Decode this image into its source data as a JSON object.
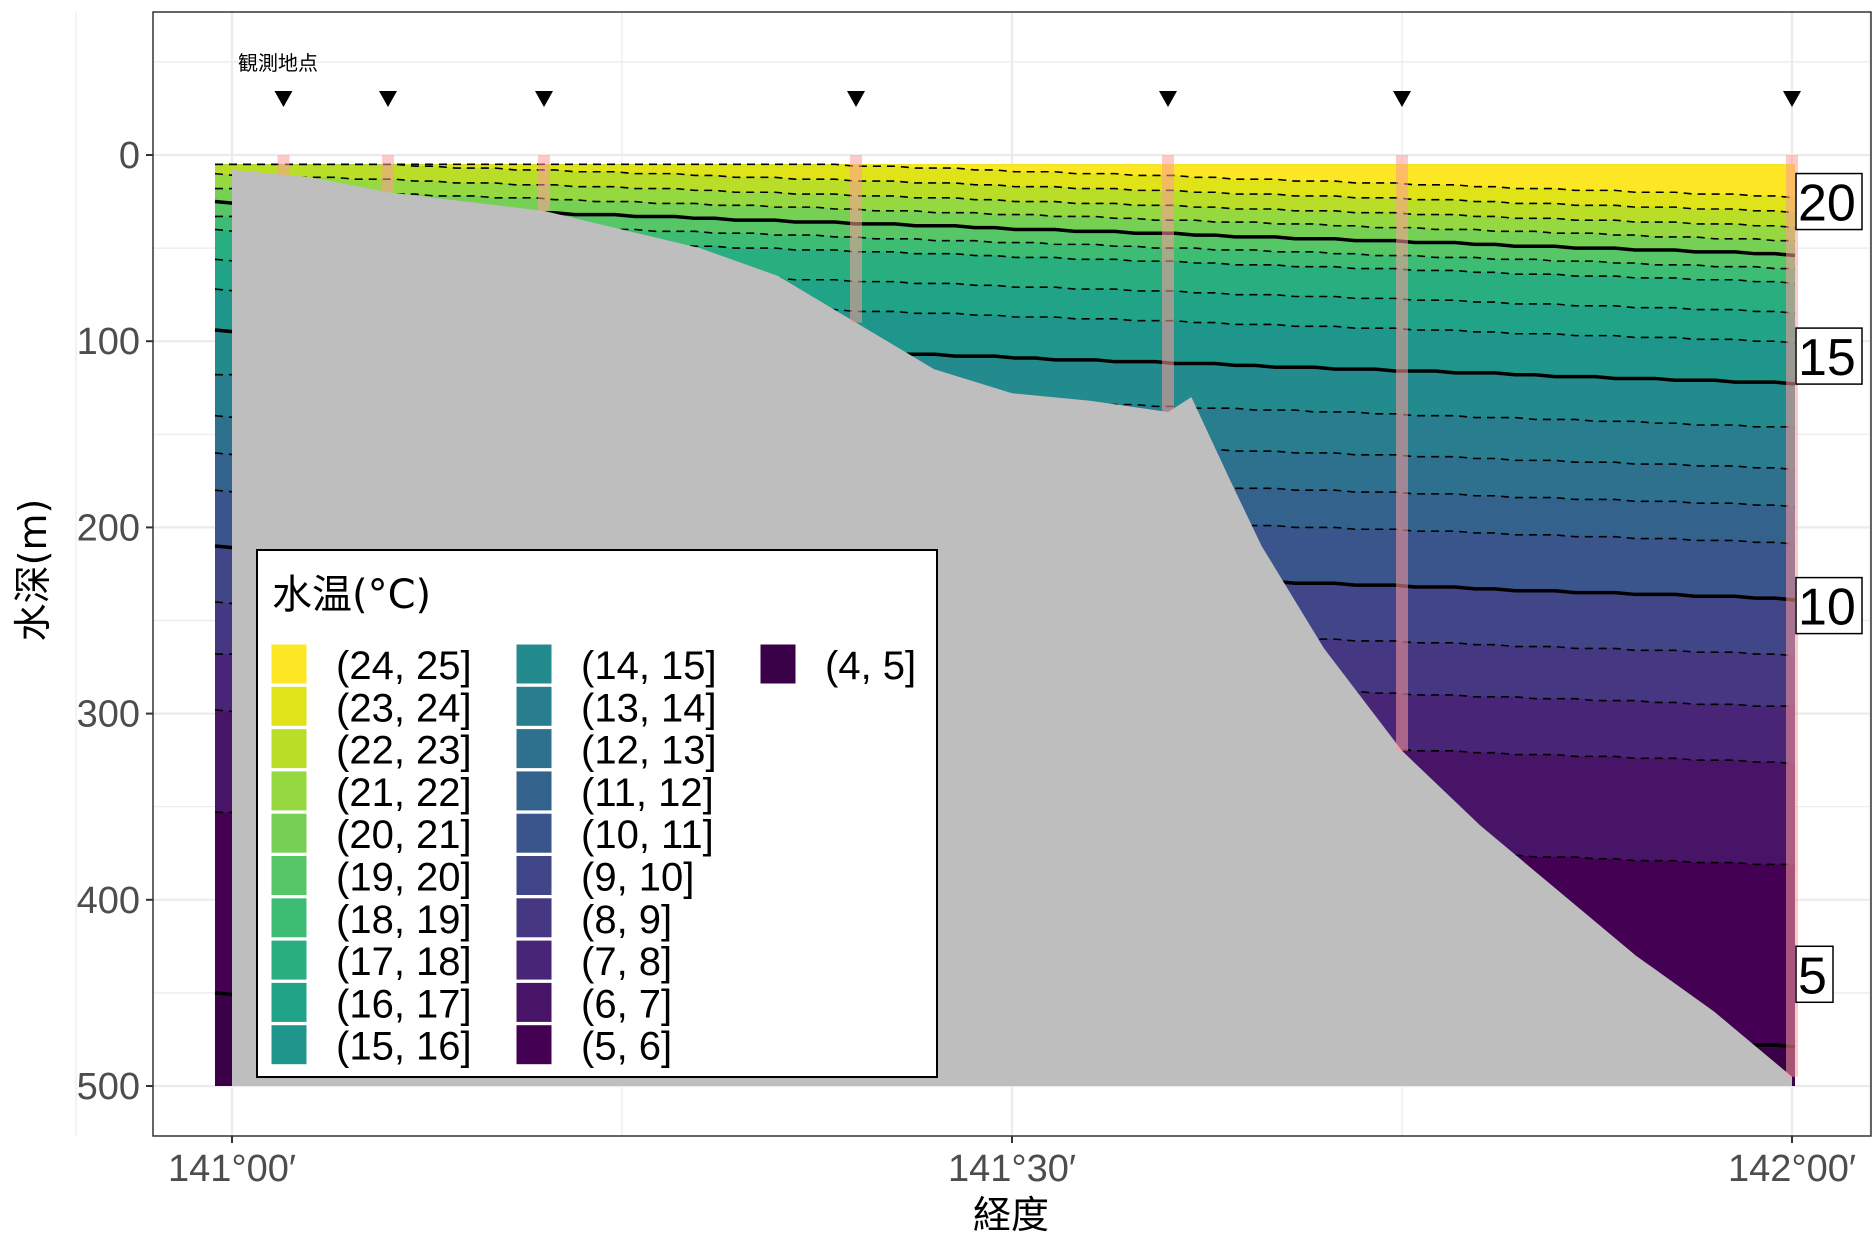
{
  "chart_data": {
    "type": "heatmap",
    "subtype": "filled-contour ocean temperature cross-section",
    "xlabel": "経度",
    "ylabel": "水深(m)",
    "x_ticks": [
      "141°00′",
      "141°30′",
      "142°00′"
    ],
    "y_ticks": [
      "0",
      "100",
      "200",
      "300",
      "400",
      "500"
    ],
    "xlim": [
      141.0,
      142.0
    ],
    "ylim": [
      500,
      0
    ],
    "y_axis_reversed": true,
    "grid": true,
    "station_caption": "観測地点",
    "stations_lon": [
      141.033,
      141.1,
      141.2,
      141.4,
      141.6,
      141.75,
      142.0
    ],
    "contour_labels": [
      {
        "text": "20",
        "value": 20,
        "depth": 25
      },
      {
        "text": "15",
        "value": 15,
        "depth": 108
      },
      {
        "text": "10",
        "value": 10,
        "depth": 242
      },
      {
        "text": "5",
        "value": 5,
        "depth": 440
      }
    ],
    "legend": {
      "title": "水温(°C)",
      "placement": "bottom-left",
      "items": [
        {
          "label": "(24, 25]",
          "color": "#fde725"
        },
        {
          "label": "(23, 24]",
          "color": "#dfe318"
        },
        {
          "label": "(22, 23]",
          "color": "#bade28"
        },
        {
          "label": "(21, 22]",
          "color": "#95d840"
        },
        {
          "label": "(20, 21]",
          "color": "#75d054"
        },
        {
          "label": "(19, 20]",
          "color": "#56c667"
        },
        {
          "label": "(18, 19]",
          "color": "#3dbc74"
        },
        {
          "label": "(17, 18]",
          "color": "#29af7f"
        },
        {
          "label": "(16, 17]",
          "color": "#20a386"
        },
        {
          "label": "(15, 16]",
          "color": "#1f968b"
        },
        {
          "label": "(14, 15]",
          "color": "#238a8d"
        },
        {
          "label": "(13, 14]",
          "color": "#287d8e"
        },
        {
          "label": "(12, 13]",
          "color": "#2d718e"
        },
        {
          "label": "(11, 12]",
          "color": "#33638d"
        },
        {
          "label": "(10, 11]",
          "color": "#39558c"
        },
        {
          "label": "(9, 10]",
          "color": "#404688"
        },
        {
          "label": "(8, 9]",
          "color": "#453781"
        },
        {
          "label": "(7, 8]",
          "color": "#482576"
        },
        {
          "label": "(6, 7]",
          "color": "#481467"
        },
        {
          "label": "(5, 6]",
          "color": "#440154"
        },
        {
          "label": "(4, 5]",
          "color": "#3a0048"
        }
      ]
    },
    "colors": {
      "seafloor": "#bebebe",
      "station_band": "#ff9a9a",
      "panel_border": "#333333",
      "grid": "#ebebeb"
    }
  }
}
